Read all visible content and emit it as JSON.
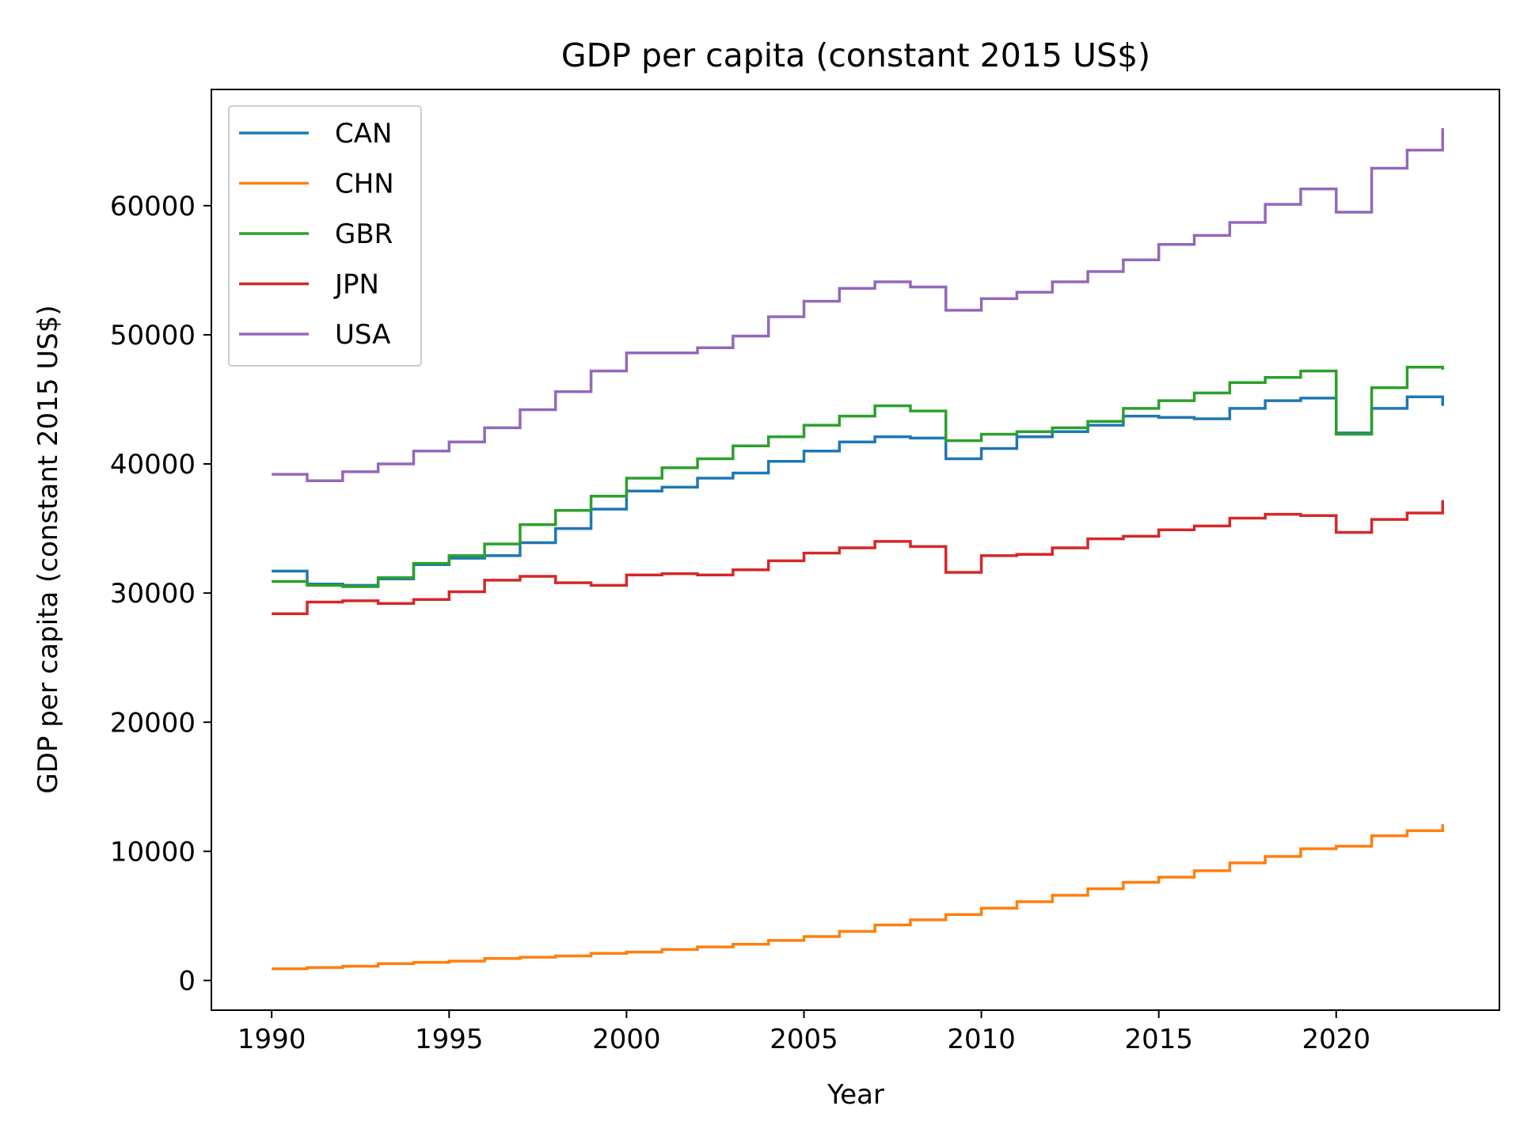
{
  "chart_data": {
    "type": "line",
    "drawstyle": "steps-post",
    "title": "GDP per capita (constant 2015 US$)",
    "xlabel": "Year",
    "ylabel": "GDP per capita (constant 2015 US$)",
    "xlim": [
      1988.3,
      2024.6
    ],
    "ylim": [
      -2300,
      69000
    ],
    "xticks": [
      1990,
      1995,
      2000,
      2005,
      2010,
      2015,
      2020
    ],
    "yticks": [
      0,
      10000,
      20000,
      30000,
      40000,
      50000,
      60000
    ],
    "grid": false,
    "legend": "upper left",
    "x": [
      1990,
      1991,
      1992,
      1993,
      1994,
      1995,
      1996,
      1997,
      1998,
      1999,
      2000,
      2001,
      2002,
      2003,
      2004,
      2005,
      2006,
      2007,
      2008,
      2009,
      2010,
      2011,
      2012,
      2013,
      2014,
      2015,
      2016,
      2017,
      2018,
      2019,
      2020,
      2021,
      2022,
      2023
    ],
    "series": [
      {
        "name": "CAN",
        "color": "#1f77b4",
        "values": [
          31700,
          30700,
          30600,
          31100,
          32200,
          32700,
          32900,
          33900,
          35000,
          36500,
          37900,
          38200,
          38900,
          39300,
          40200,
          41000,
          41700,
          42100,
          42000,
          40400,
          41200,
          42100,
          42500,
          43000,
          43700,
          43600,
          43500,
          44300,
          44900,
          45100,
          42400,
          44300,
          45200,
          44500
        ]
      },
      {
        "name": "CHN",
        "color": "#ff7f0e",
        "values": [
          900,
          1000,
          1100,
          1300,
          1400,
          1500,
          1700,
          1800,
          1900,
          2100,
          2200,
          2400,
          2600,
          2800,
          3100,
          3400,
          3800,
          4300,
          4700,
          5100,
          5600,
          6100,
          6600,
          7100,
          7600,
          8000,
          8500,
          9100,
          9600,
          10200,
          10400,
          11200,
          11600,
          12100
        ]
      },
      {
        "name": "GBR",
        "color": "#2ca02c",
        "values": [
          30900,
          30600,
          30500,
          31200,
          32300,
          32900,
          33800,
          35300,
          36400,
          37500,
          38900,
          39700,
          40400,
          41400,
          42100,
          43000,
          43700,
          44500,
          44100,
          41800,
          42300,
          42500,
          42800,
          43300,
          44300,
          44900,
          45500,
          46300,
          46700,
          47200,
          42300,
          45900,
          47500,
          47300
        ]
      },
      {
        "name": "JPN",
        "color": "#d62728",
        "values": [
          28400,
          29300,
          29400,
          29200,
          29500,
          30100,
          31000,
          31300,
          30800,
          30600,
          31400,
          31500,
          31400,
          31800,
          32500,
          33100,
          33500,
          34000,
          33600,
          31600,
          32900,
          33000,
          33500,
          34200,
          34400,
          34900,
          35200,
          35800,
          36100,
          36000,
          34700,
          35700,
          36200,
          37200
        ]
      },
      {
        "name": "USA",
        "color": "#9467bd",
        "values": [
          39200,
          38700,
          39400,
          40000,
          41000,
          41700,
          42800,
          44200,
          45600,
          47200,
          48600,
          48600,
          49000,
          49900,
          51400,
          52600,
          53600,
          54100,
          53700,
          51900,
          52800,
          53300,
          54100,
          54900,
          55800,
          57000,
          57700,
          58700,
          60100,
          61300,
          59500,
          62900,
          64300,
          66000
        ]
      }
    ]
  }
}
